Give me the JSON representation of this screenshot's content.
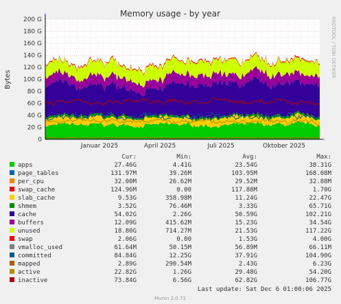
{
  "chart_data": {
    "type": "area",
    "title": "Memory usage - by year",
    "ylabel": "Bytes",
    "side_label": "RRDTOOL / TOBI OETIKER",
    "x_ticks": [
      "Januar 2025",
      "April 2025",
      "Juli 2025",
      "Oktober 2025"
    ],
    "y_ticks": [
      "0",
      "20 G",
      "40 G",
      "60 G",
      "80 G",
      "100 G",
      "120 G",
      "140 G",
      "160 G",
      "180 G",
      "200 G"
    ],
    "ylim": [
      0,
      200
    ],
    "y_unit": "G",
    "grid": true,
    "legend_placement": "bottom",
    "columns": [
      "Cur:",
      "Min:",
      "Avg:",
      "Max:"
    ],
    "series": [
      {
        "name": "apps",
        "color": "#00cc00",
        "cur": "27.46G",
        "min": "4.41G",
        "avg": "23.54G",
        "max": "38.31G"
      },
      {
        "name": "page_tables",
        "color": "#0066b3",
        "cur": "131.97M",
        "min": "39.26M",
        "avg": "103.95M",
        "max": "168.08M"
      },
      {
        "name": "per_cpu",
        "color": "#ff8000",
        "cur": "32.00M",
        "min": "26.62M",
        "avg": "29.52M",
        "max": "32.88M"
      },
      {
        "name": "swap_cache",
        "color": "#ff0000",
        "cur": "124.96M",
        "min": "0.00",
        "avg": "117.88M",
        "max": "1.70G"
      },
      {
        "name": "slab_cache",
        "color": "#ffcc00",
        "cur": "9.53G",
        "min": "358.98M",
        "avg": "11.24G",
        "max": "22.47G"
      },
      {
        "name": "shmem",
        "color": "#008f00",
        "cur": "3.52G",
        "min": "76.46M",
        "avg": "3.33G",
        "max": "65.71G"
      },
      {
        "name": "cache",
        "color": "#330099",
        "cur": "54.02G",
        "min": "2.26G",
        "avg": "50.59G",
        "max": "102.21G"
      },
      {
        "name": "buffers",
        "color": "#990099",
        "cur": "12.09G",
        "min": "415.62M",
        "avg": "15.23G",
        "max": "34.54G"
      },
      {
        "name": "unused",
        "color": "#ccff00",
        "cur": "18.80G",
        "min": "714.27M",
        "avg": "21.53G",
        "max": "117.22G"
      },
      {
        "name": "swap",
        "color": "#ff0000",
        "cur": "2.06G",
        "min": "0.00",
        "avg": "1.53G",
        "max": "4.00G"
      },
      {
        "name": "vmalloc_used",
        "color": "#808080",
        "cur": "61.64M",
        "min": "50.15M",
        "avg": "56.89M",
        "max": "66.11M"
      },
      {
        "name": "committed",
        "color": "#005a8c",
        "cur": "84.84G",
        "min": "12.25G",
        "avg": "37.91G",
        "max": "104.90G"
      },
      {
        "name": "mapped",
        "color": "#b35a00",
        "cur": "2.89G",
        "min": "290.54M",
        "avg": "2.43G",
        "max": "6.23G"
      },
      {
        "name": "active",
        "color": "#b38f00",
        "cur": "22.82G",
        "min": "1.26G",
        "avg": "29.48G",
        "max": "54.20G"
      },
      {
        "name": "inactive",
        "color": "#b30000",
        "cur": "73.84G",
        "min": "6.56G",
        "avg": "62.82G",
        "max": "106.77G"
      }
    ],
    "last_update": "Last update: Sat Dec  6 01:00:06 2025",
    "footer": "Munin 2.0.73"
  }
}
